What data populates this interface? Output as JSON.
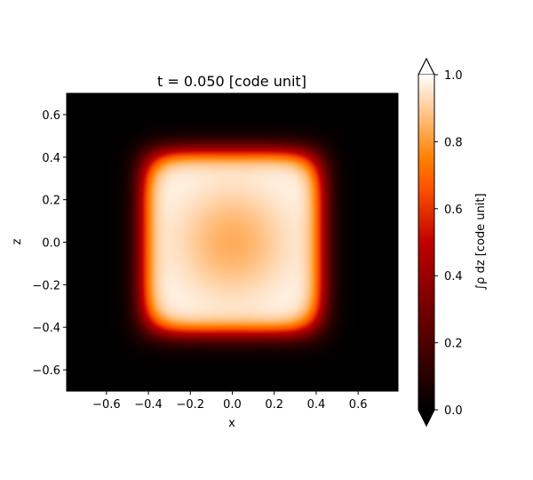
{
  "chart_data": {
    "type": "heatmap",
    "title": "t = 0.050 [code unit]",
    "xlabel": "x",
    "ylabel": "z",
    "xlim": [
      -0.79,
      0.79
    ],
    "ylim": [
      -0.7,
      0.7
    ],
    "x_ticks": [
      -0.6,
      -0.4,
      -0.2,
      0.0,
      0.2,
      0.4,
      0.6
    ],
    "x_tick_labels": [
      "−0.6",
      "−0.4",
      "−0.2",
      "0.0",
      "0.2",
      "0.4",
      "0.6"
    ],
    "y_ticks": [
      -0.6,
      -0.4,
      -0.2,
      0.0,
      0.2,
      0.4,
      0.6
    ],
    "y_tick_labels": [
      "−0.6",
      "−0.4",
      "−0.2",
      "0.0",
      "0.2",
      "0.4",
      "0.6"
    ],
    "colormap": "gist_heat",
    "colorbar": {
      "label": "∫ρ dz [code unit]",
      "range": [
        0.0,
        1.0
      ],
      "ticks": [
        0.0,
        0.2,
        0.4,
        0.6,
        0.8,
        1.0
      ],
      "tick_labels": [
        "0.0",
        "0.2",
        "0.4",
        "0.6",
        "0.8",
        "1.0"
      ],
      "extend": "both"
    },
    "field": {
      "description_shape": "rounded-square",
      "half_width": 0.43,
      "edge_width": 0.03,
      "center_value": 0.84,
      "plateau_value": 1.0,
      "center_radius": 0.26
    }
  }
}
